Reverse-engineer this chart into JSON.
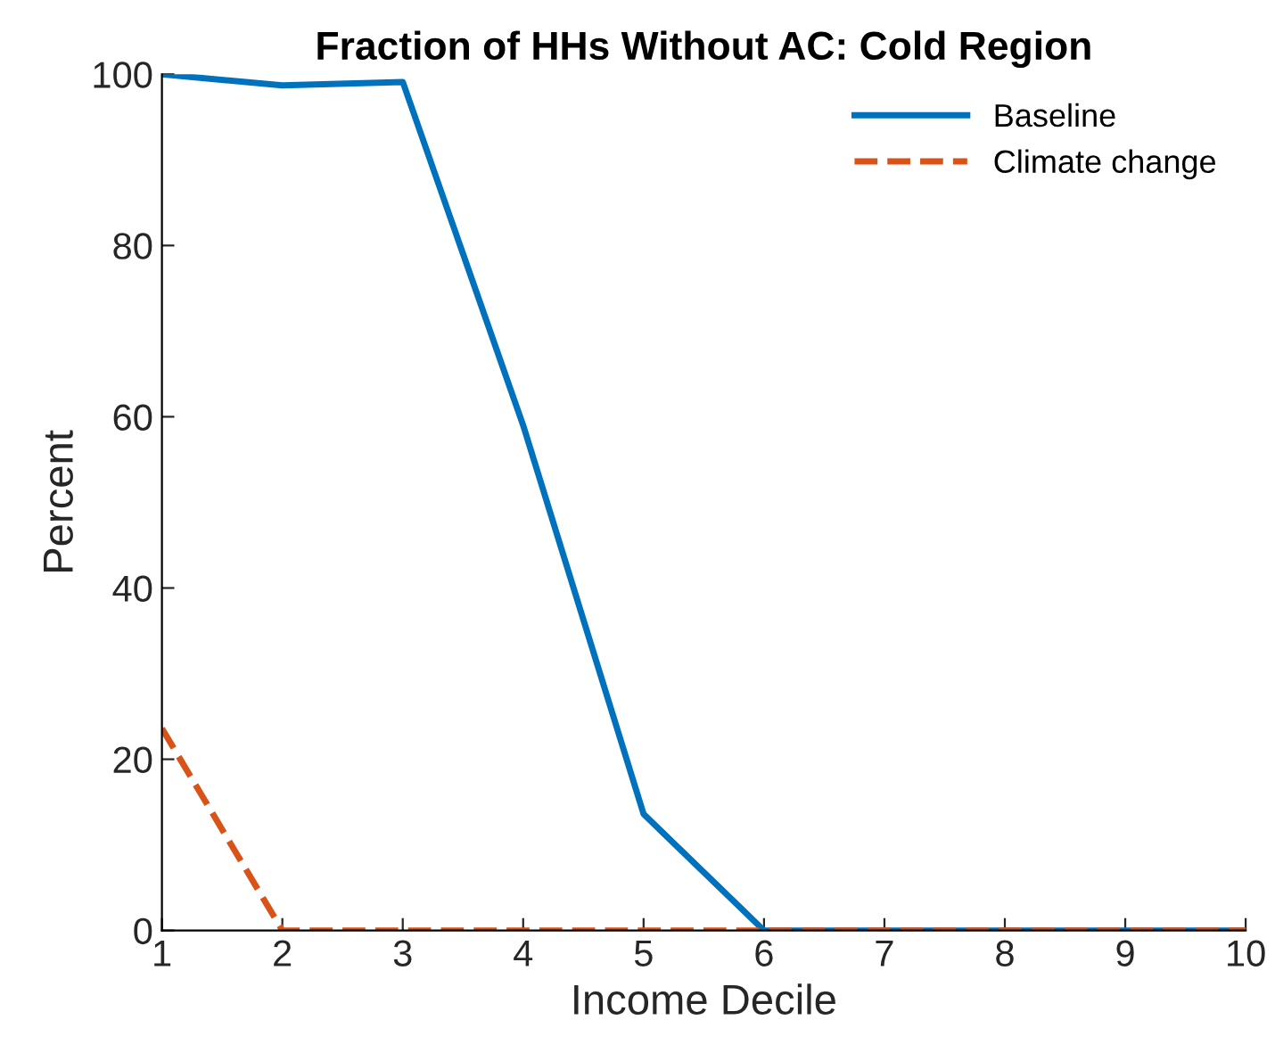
{
  "chart_data": {
    "type": "line",
    "title": "Fraction of HHs Without AC: Cold Region",
    "xlabel": "Income Decile",
    "ylabel": "Percent",
    "x": [
      1,
      2,
      3,
      4,
      5,
      6,
      7,
      8,
      9,
      10
    ],
    "series": [
      {
        "name": "Baseline",
        "color": "#0072bd",
        "line_style": "solid",
        "values": [
          100,
          98.7,
          99.1,
          59,
          13.6,
          0,
          0,
          0,
          0,
          0
        ]
      },
      {
        "name": "Climate change",
        "color": "#d95319",
        "line_style": "dashed",
        "values": [
          23.6,
          0,
          0,
          0,
          0,
          0,
          0,
          0,
          0,
          0
        ]
      }
    ],
    "xlim": [
      1,
      10
    ],
    "xticks": [
      1,
      2,
      3,
      4,
      5,
      6,
      7,
      8,
      9,
      10
    ],
    "ylim": [
      0,
      100
    ],
    "yticks": [
      0,
      20,
      40,
      60,
      80,
      100
    ],
    "grid": false,
    "legend": "top right",
    "marker": "none"
  }
}
